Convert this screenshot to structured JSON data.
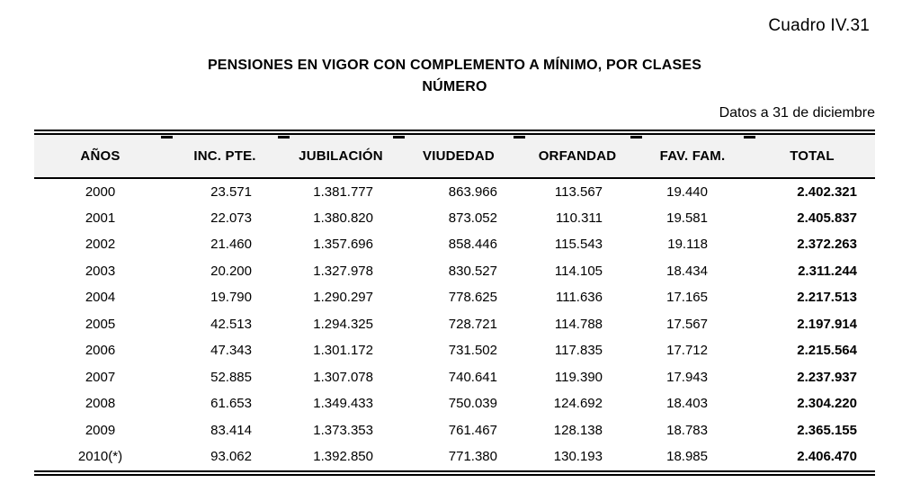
{
  "header": {
    "cuadro_label": "Cuadro IV.31",
    "title_line1": "PENSIONES EN VIGOR CON COMPLEMENTO A MÍNIMO, POR CLASES",
    "title_line2": "NÚMERO",
    "note_right": "Datos a 31 de diciembre"
  },
  "table": {
    "columns": [
      {
        "key": "anos",
        "label": "AÑOS"
      },
      {
        "key": "inc_pte",
        "label": "INC. PTE."
      },
      {
        "key": "jubilacion",
        "label": "JUBILACIÓN"
      },
      {
        "key": "viudedad",
        "label": "VIUDEDAD"
      },
      {
        "key": "orfandad",
        "label": "ORFANDAD"
      },
      {
        "key": "fav_fam",
        "label": "FAV. FAM."
      },
      {
        "key": "total",
        "label": "TOTAL"
      }
    ],
    "rows": [
      {
        "anos": "2000",
        "inc_pte": "23.571",
        "jubilacion": "1.381.777",
        "viudedad": "863.966",
        "orfandad": "113.567",
        "fav_fam": "19.440",
        "total": "2.402.321"
      },
      {
        "anos": "2001",
        "inc_pte": "22.073",
        "jubilacion": "1.380.820",
        "viudedad": "873.052",
        "orfandad": "110.311",
        "fav_fam": "19.581",
        "total": "2.405.837"
      },
      {
        "anos": "2002",
        "inc_pte": "21.460",
        "jubilacion": "1.357.696",
        "viudedad": "858.446",
        "orfandad": "115.543",
        "fav_fam": "19.118",
        "total": "2.372.263"
      },
      {
        "anos": "2003",
        "inc_pte": "20.200",
        "jubilacion": "1.327.978",
        "viudedad": "830.527",
        "orfandad": "114.105",
        "fav_fam": "18.434",
        "total": "2.311.244"
      },
      {
        "anos": "2004",
        "inc_pte": "19.790",
        "jubilacion": "1.290.297",
        "viudedad": "778.625",
        "orfandad": "111.636",
        "fav_fam": "17.165",
        "total": "2.217.513"
      },
      {
        "anos": "2005",
        "inc_pte": "42.513",
        "jubilacion": "1.294.325",
        "viudedad": "728.721",
        "orfandad": "114.788",
        "fav_fam": "17.567",
        "total": "2.197.914"
      },
      {
        "anos": "2006",
        "inc_pte": "47.343",
        "jubilacion": "1.301.172",
        "viudedad": "731.502",
        "orfandad": "117.835",
        "fav_fam": "17.712",
        "total": "2.215.564"
      },
      {
        "anos": "2007",
        "inc_pte": "52.885",
        "jubilacion": "1.307.078",
        "viudedad": "740.641",
        "orfandad": "119.390",
        "fav_fam": "17.943",
        "total": "2.237.937"
      },
      {
        "anos": "2008",
        "inc_pte": "61.653",
        "jubilacion": "1.349.433",
        "viudedad": "750.039",
        "orfandad": "124.692",
        "fav_fam": "18.403",
        "total": "2.304.220"
      },
      {
        "anos": "2009",
        "inc_pte": "83.414",
        "jubilacion": "1.373.353",
        "viudedad": "761.467",
        "orfandad": "128.138",
        "fav_fam": "18.783",
        "total": "2.365.155"
      },
      {
        "anos": "2010(*)",
        "inc_pte": "93.062",
        "jubilacion": "1.392.850",
        "viudedad": "771.380",
        "orfandad": "130.193",
        "fav_fam": "18.985",
        "total": "2.406.470"
      }
    ]
  },
  "colors": {
    "header_row_bg": "#f2f2f2",
    "rule": "#000000",
    "text": "#000000"
  }
}
